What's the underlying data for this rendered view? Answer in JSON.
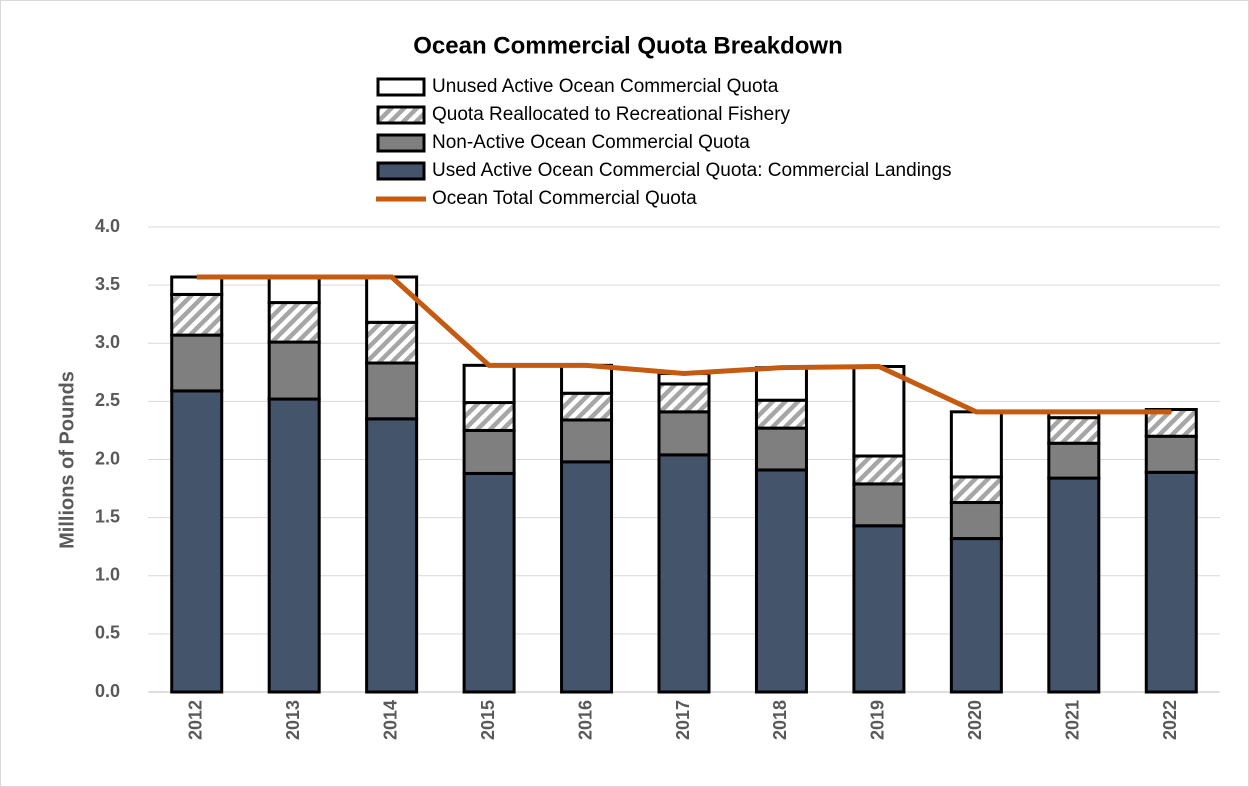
{
  "chart_data": {
    "type": "bar",
    "stacked": true,
    "title": "Ocean Commercial Quota Breakdown",
    "y_label": "Millions of Pounds",
    "categories": [
      "2012",
      "2013",
      "2014",
      "2015",
      "2016",
      "2017",
      "2018",
      "2019",
      "2020",
      "2021",
      "2022"
    ],
    "series": [
      {
        "name": "Used Active Ocean Commercial Quota: Commercial Landings",
        "color": "#44546a",
        "values": [
          2.59,
          2.52,
          2.35,
          1.88,
          1.98,
          2.04,
          1.91,
          1.43,
          1.32,
          1.84,
          1.89
        ]
      },
      {
        "name": "Non-Active Ocean Commercial Quota",
        "color": "#7f7f7f",
        "values": [
          0.48,
          0.49,
          0.48,
          0.37,
          0.36,
          0.37,
          0.36,
          0.36,
          0.31,
          0.3,
          0.31
        ]
      },
      {
        "name": "Quota Reallocated to Recreational Fishery",
        "color": "#a6a6a6",
        "pattern": "hatch",
        "values": [
          0.35,
          0.34,
          0.35,
          0.24,
          0.23,
          0.24,
          0.24,
          0.24,
          0.22,
          0.22,
          0.23
        ]
      },
      {
        "name": "Unused Active Ocean Commercial Quota",
        "color": "#ffffff",
        "values": [
          0.15,
          0.22,
          0.39,
          0.32,
          0.24,
          0.09,
          0.28,
          0.77,
          0.56,
          0.05,
          0
        ]
      },
      {
        "name": "Ocean Total Commercial Quota",
        "type": "line",
        "color": "#c55a11",
        "values": [
          3.57,
          3.57,
          3.57,
          2.81,
          2.81,
          2.74,
          2.79,
          2.8,
          2.41,
          2.41,
          2.41
        ]
      }
    ],
    "ylim": [
      0,
      4
    ],
    "yticks": [
      {
        "value": 0,
        "label": "0.0"
      },
      {
        "value": 0.5,
        "label": "0.5"
      },
      {
        "value": 1,
        "label": "1.0"
      },
      {
        "value": 1.5,
        "label": "1.5"
      },
      {
        "value": 2,
        "label": "2.0"
      },
      {
        "value": 2.5,
        "label": "2.5"
      },
      {
        "value": 3,
        "label": "3.0"
      },
      {
        "value": 3.5,
        "label": "3.5"
      },
      {
        "value": 4,
        "label": "4.0"
      }
    ],
    "grid": true,
    "legend": "top"
  }
}
